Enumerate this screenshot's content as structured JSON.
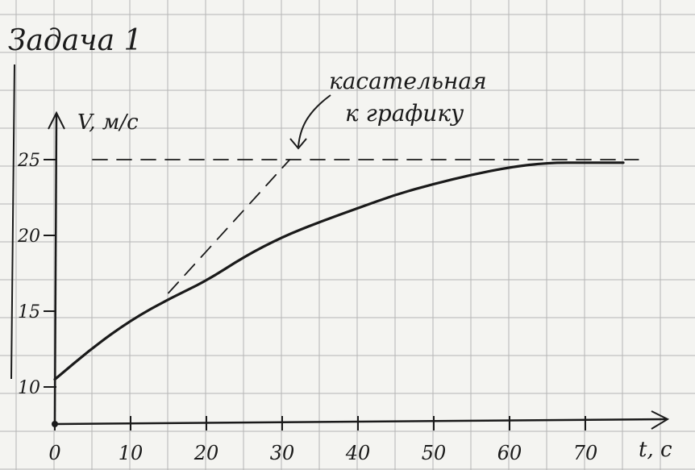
{
  "title": "Задача 1",
  "annotation": {
    "line1": "касательная",
    "line2": "к графику"
  },
  "chart_data": {
    "type": "line",
    "title": "Задача 1",
    "xlabel": "t, c",
    "ylabel": "V, м/с",
    "xlim": [
      0,
      80
    ],
    "ylim": [
      8,
      27
    ],
    "x_ticks": [
      0,
      10,
      20,
      30,
      40,
      50,
      60,
      70
    ],
    "y_ticks": [
      10,
      15,
      20,
      25
    ],
    "x_tick_labels": [
      "0",
      "10",
      "20",
      "30",
      "40",
      "50",
      "60",
      "70"
    ],
    "y_tick_labels": [
      "10",
      "15",
      "20",
      "25"
    ],
    "grid": true,
    "series": [
      {
        "style": "solid",
        "x": [
          0,
          5,
          10,
          15,
          20,
          25,
          30,
          35,
          40,
          45,
          50,
          55,
          60,
          65,
          70,
          75
        ],
        "y": [
          10.5,
          12.6,
          14.4,
          15.8,
          17.0,
          18.6,
          19.9,
          20.9,
          21.8,
          22.7,
          23.4,
          24.0,
          24.5,
          24.8,
          24.8,
          24.8
        ]
      },
      {
        "style": "dashed",
        "x": [
          15,
          31
        ],
        "y": [
          16.2,
          25
        ]
      },
      {
        "style": "dashed",
        "x": [
          5,
          77
        ],
        "y": [
          25,
          25
        ]
      }
    ],
    "colors": {
      "ink": "#1a1a1a",
      "grid": "#b5b5b5",
      "paper": "#f4f4f1"
    }
  }
}
